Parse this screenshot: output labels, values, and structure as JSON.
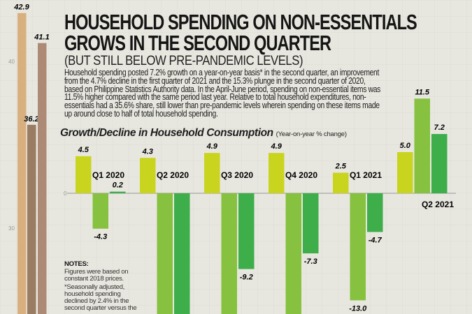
{
  "header": {
    "title_line1": "HOUSEHOLD SPENDING ON NON-ESSENTIALS",
    "title_line2": "GROWS IN THE SECOND QUARTER",
    "subtitle": "(BUT STILL BELOW PRE-PANDEMIC LEVELS)",
    "body": "Household spending posted 7.2% growth on a year-on-year basis* in the second quarter, an improvement from the 4.7% decline in the first quarter of 2021 and the 15.3% plunge in the second quarter of 2020, based on Philippine Statistics Authority data. In the April-June period, spending on non-essential items was 11.5% higher compared with the same period last year. Relative to total household expenditures, non-essentials had a 35.6% share, still lower than pre-pandemic levels wherein spending on these items made up around close to half of total household spending."
  },
  "notes": {
    "heading": "NOTES:",
    "line1": "Figures were based on constant 2018 prices.",
    "line2": "*Seasonally adjusted, household spending declined by 2.4% in the second quarter versus the"
  },
  "colors": {
    "series1": "#c9d41f",
    "series2": "#86c13f",
    "series3": "#3eae4a",
    "left1": "#d8b07f",
    "left2": "#9a7c63",
    "left3": "#ad8a75"
  },
  "chart_data": [
    {
      "type": "bar",
      "title": "",
      "yticks": [
        30,
        40
      ],
      "ylim": [
        26,
        44
      ],
      "values": [
        42.9,
        36.2,
        41.1
      ],
      "labels": [
        "42.9",
        "36.2",
        "41.1"
      ]
    },
    {
      "type": "bar",
      "title": "Growth/Decline in Household Consumption",
      "subtitle": "(Year-on-year % change)",
      "categories": [
        "Q1 2020",
        "Q2 2020",
        "Q3 2020",
        "Q4 2020",
        "Q1 2021",
        "Q2 2021"
      ],
      "yticks": [
        0
      ],
      "series": [
        {
          "values": [
            4.5,
            4.3,
            4.9,
            4.9,
            2.5,
            5.0
          ],
          "labels": [
            "4.5",
            "4.3",
            "4.9",
            "4.9",
            "2.5",
            "5.0"
          ]
        },
        {
          "values": [
            -4.3,
            null,
            null,
            null,
            -13.0,
            11.5
          ],
          "labels": [
            "-4.3",
            "",
            "",
            "",
            "-13.0",
            "11.5"
          ]
        },
        {
          "values": [
            0.2,
            null,
            -9.2,
            -7.3,
            -4.7,
            7.2
          ],
          "labels": [
            "0.2",
            "",
            "-9.2",
            "-7.3",
            "-4.7",
            "7.2"
          ]
        }
      ]
    }
  ]
}
